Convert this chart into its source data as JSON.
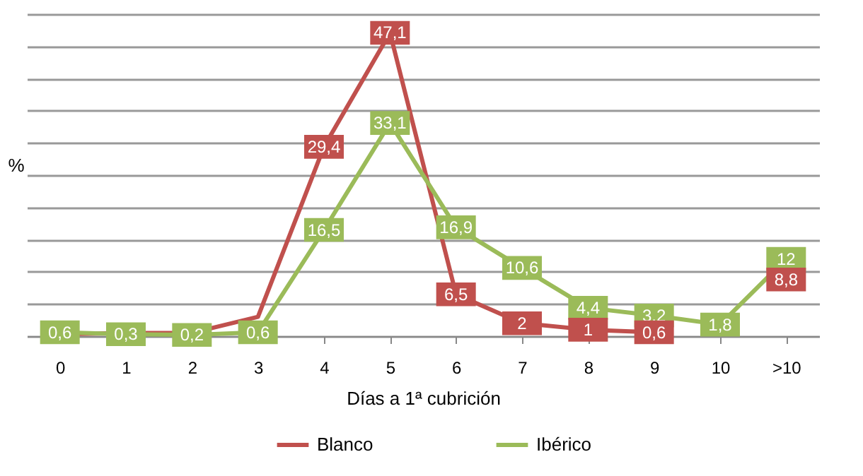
{
  "chart_data": {
    "type": "line",
    "xlabel": "Días a 1ª cubrición",
    "ylabel": "%",
    "categories": [
      "0",
      "1",
      "2",
      "3",
      "4",
      "5",
      "6",
      "7",
      "8",
      "9",
      "10",
      ">10"
    ],
    "series": [
      {
        "name": "Blanco",
        "color": "#c0504d",
        "values": [
          0.3,
          0.5,
          0.5,
          3,
          29.4,
          47.1,
          6.5,
          2,
          1,
          0.6,
          null,
          8.8
        ],
        "value_labels": [
          null,
          null,
          null,
          null,
          "29,4",
          "47,1",
          "6,5",
          "2",
          "1",
          "0,6",
          null,
          "8,8"
        ]
      },
      {
        "name": "Ibérico",
        "color": "#9bbb59",
        "values": [
          0.6,
          0.3,
          0.2,
          0.6,
          16.5,
          33.1,
          16.9,
          10.6,
          4.4,
          3.2,
          1.8,
          12
        ],
        "value_labels": [
          "0,6",
          "0,3",
          "0,2",
          "0,6",
          "16,5",
          "33,1",
          "16,9",
          "10,6",
          "4,4",
          "3,2",
          "1,8",
          "12"
        ]
      }
    ],
    "grid": "y",
    "tick_labels": "x",
    "legend": "bottom",
    "marker": "square",
    "line_style": "solid"
  }
}
